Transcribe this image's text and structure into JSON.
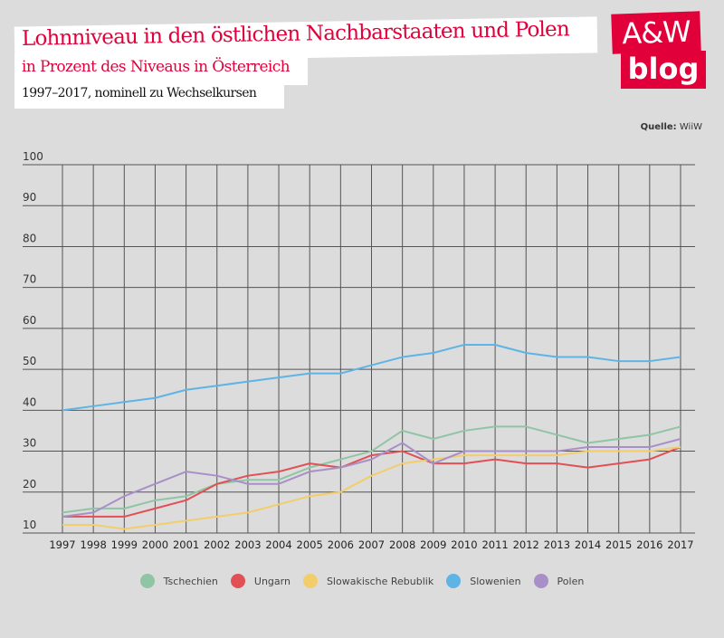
{
  "header": {
    "title": "Lohnniveau in den östlichen Nachbarstaaten und Polen",
    "subtitle": "in Prozent des Niveaus in Österreich",
    "note": "1997–2017, nominell zu Wechselkursen"
  },
  "logo": {
    "line1": "A&W",
    "line2": "blog",
    "color": "#e2003a"
  },
  "source": {
    "label": "Quelle:",
    "value": "WiiW"
  },
  "chart_data": {
    "type": "line",
    "title": "Lohnniveau in den östlichen Nachbarstaaten und Polen",
    "subtitle": "in Prozent des Niveaus in Österreich",
    "x": [
      "1997",
      "1998",
      "1999",
      "2000",
      "2001",
      "2002",
      "2003",
      "2004",
      "2005",
      "2006",
      "2007",
      "2008",
      "2009",
      "2010",
      "2011",
      "2012",
      "2013",
      "2014",
      "2015",
      "2016",
      "2017"
    ],
    "ylim": [
      10,
      100
    ],
    "yticks": [
      "10",
      "20",
      "30",
      "40",
      "50",
      "60",
      "70",
      "80",
      "90",
      "100"
    ],
    "grid": true,
    "legend": "bottom",
    "series": [
      {
        "name": "Tschechien",
        "color": "#8fc5a4",
        "values": [
          15,
          16,
          16,
          18,
          19,
          22,
          23,
          23,
          26,
          28,
          30,
          35,
          33,
          35,
          36,
          36,
          34,
          32,
          33,
          34,
          36
        ]
      },
      {
        "name": "Ungarn",
        "color": "#e05055",
        "values": [
          14,
          14,
          14,
          16,
          18,
          22,
          24,
          25,
          27,
          26,
          29,
          30,
          27,
          27,
          28,
          27,
          27,
          26,
          27,
          28,
          31
        ]
      },
      {
        "name": "Slowakische Rebublik",
        "color": "#f2cd6a",
        "values": [
          12,
          12,
          11,
          12,
          13,
          14,
          15,
          17,
          19,
          20,
          24,
          27,
          28,
          29,
          29,
          29,
          29,
          30,
          30,
          30,
          31
        ]
      },
      {
        "name": "Slowenien",
        "color": "#5db4e5",
        "values": [
          40,
          41,
          42,
          43,
          45,
          46,
          47,
          48,
          49,
          49,
          51,
          53,
          54,
          56,
          56,
          54,
          53,
          53,
          52,
          52,
          53
        ]
      },
      {
        "name": "Polen",
        "color": "#a98fc8",
        "values": [
          14,
          15,
          19,
          22,
          25,
          24,
          22,
          22,
          25,
          26,
          28,
          32,
          27,
          30,
          30,
          30,
          30,
          31,
          31,
          31,
          33
        ]
      }
    ]
  }
}
